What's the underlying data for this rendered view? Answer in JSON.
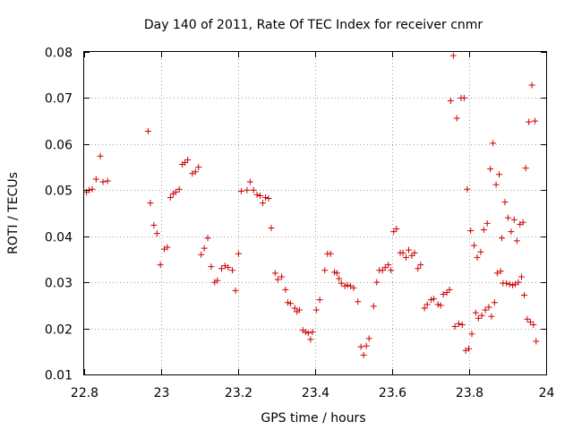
{
  "chart_data": {
    "type": "scatter",
    "title": "Day 140 of 2011, Rate Of TEC Index for receiver cnmr",
    "xlabel": "GPS time / hours",
    "ylabel": "ROTI / TECUs",
    "xlim": [
      22.8,
      24.0
    ],
    "ylim": [
      0.01,
      0.08
    ],
    "x_ticks": [
      "22.8",
      "23",
      "23.2",
      "23.4",
      "23.6",
      "23.8",
      "24"
    ],
    "y_ticks": [
      "0.01",
      "0.02",
      "0.03",
      "0.04",
      "0.05",
      "0.06",
      "0.07",
      "0.08"
    ],
    "grid": true,
    "marker": "+",
    "color": "#cc0000",
    "series": [
      {
        "points": [
          [
            22.806,
            0.0496
          ],
          [
            22.813,
            0.05
          ],
          [
            22.821,
            0.0502
          ],
          [
            22.831,
            0.0524
          ],
          [
            22.842,
            0.0574
          ],
          [
            22.849,
            0.0518
          ],
          [
            22.861,
            0.052
          ],
          [
            22.966,
            0.0628
          ],
          [
            22.972,
            0.0472
          ],
          [
            22.981,
            0.0424
          ],
          [
            22.989,
            0.0406
          ],
          [
            22.998,
            0.0338
          ],
          [
            23.008,
            0.0372
          ],
          [
            23.016,
            0.0376
          ],
          [
            23.024,
            0.0484
          ],
          [
            23.031,
            0.0492
          ],
          [
            23.038,
            0.0496
          ],
          [
            23.047,
            0.0502
          ],
          [
            23.055,
            0.0556
          ],
          [
            23.062,
            0.056
          ],
          [
            23.069,
            0.0566
          ],
          [
            23.081,
            0.0536
          ],
          [
            23.089,
            0.054
          ],
          [
            23.097,
            0.055
          ],
          [
            23.104,
            0.036
          ],
          [
            23.112,
            0.0374
          ],
          [
            23.121,
            0.0396
          ],
          [
            23.13,
            0.0334
          ],
          [
            23.139,
            0.03
          ],
          [
            23.146,
            0.0304
          ],
          [
            23.157,
            0.033
          ],
          [
            23.166,
            0.0336
          ],
          [
            23.174,
            0.0332
          ],
          [
            23.185,
            0.0326
          ],
          [
            23.193,
            0.0282
          ],
          [
            23.201,
            0.0362
          ],
          [
            23.208,
            0.0498
          ],
          [
            23.223,
            0.05
          ],
          [
            23.231,
            0.0518
          ],
          [
            23.24,
            0.05
          ],
          [
            23.249,
            0.049
          ],
          [
            23.257,
            0.0488
          ],
          [
            23.264,
            0.0472
          ],
          [
            23.271,
            0.0484
          ],
          [
            23.279,
            0.0482
          ],
          [
            23.286,
            0.0418
          ],
          [
            23.296,
            0.032
          ],
          [
            23.303,
            0.0306
          ],
          [
            23.313,
            0.0312
          ],
          [
            23.323,
            0.0284
          ],
          [
            23.329,
            0.0256
          ],
          [
            23.336,
            0.0254
          ],
          [
            23.347,
            0.0244
          ],
          [
            23.353,
            0.0236
          ],
          [
            23.359,
            0.024
          ],
          [
            23.368,
            0.0196
          ],
          [
            23.375,
            0.0192
          ],
          [
            23.382,
            0.019
          ],
          [
            23.388,
            0.0176
          ],
          [
            23.393,
            0.0192
          ],
          [
            23.403,
            0.024
          ],
          [
            23.412,
            0.0262
          ],
          [
            23.425,
            0.0326
          ],
          [
            23.432,
            0.0362
          ],
          [
            23.44,
            0.0362
          ],
          [
            23.45,
            0.0322
          ],
          [
            23.457,
            0.032
          ],
          [
            23.462,
            0.0308
          ],
          [
            23.468,
            0.0298
          ],
          [
            23.477,
            0.0292
          ],
          [
            23.484,
            0.0294
          ],
          [
            23.492,
            0.0292
          ],
          [
            23.5,
            0.0288
          ],
          [
            23.511,
            0.0258
          ],
          [
            23.519,
            0.016
          ],
          [
            23.526,
            0.0142
          ],
          [
            23.533,
            0.0162
          ],
          [
            23.54,
            0.0178
          ],
          [
            23.552,
            0.0248
          ],
          [
            23.56,
            0.03
          ],
          [
            23.567,
            0.0326
          ],
          [
            23.575,
            0.0326
          ],
          [
            23.582,
            0.0332
          ],
          [
            23.59,
            0.0338
          ],
          [
            23.597,
            0.0326
          ],
          [
            23.604,
            0.041
          ],
          [
            23.611,
            0.0416
          ],
          [
            23.621,
            0.0364
          ],
          [
            23.628,
            0.0364
          ],
          [
            23.636,
            0.0354
          ],
          [
            23.643,
            0.037
          ],
          [
            23.651,
            0.0358
          ],
          [
            23.658,
            0.0364
          ],
          [
            23.667,
            0.033
          ],
          [
            23.674,
            0.0338
          ],
          [
            23.684,
            0.0244
          ],
          [
            23.691,
            0.0252
          ],
          [
            23.701,
            0.0262
          ],
          [
            23.708,
            0.0264
          ],
          [
            23.719,
            0.0252
          ],
          [
            23.726,
            0.025
          ],
          [
            23.733,
            0.0274
          ],
          [
            23.742,
            0.0278
          ],
          [
            23.749,
            0.0284
          ],
          [
            23.752,
            0.0694
          ],
          [
            23.759,
            0.0792
          ],
          [
            23.763,
            0.0204
          ],
          [
            23.768,
            0.0656
          ],
          [
            23.773,
            0.021
          ],
          [
            23.779,
            0.07
          ],
          [
            23.782,
            0.0208
          ],
          [
            23.787,
            0.07
          ],
          [
            23.791,
            0.0152
          ],
          [
            23.795,
            0.0502
          ],
          [
            23.799,
            0.0156
          ],
          [
            23.804,
            0.0412
          ],
          [
            23.807,
            0.0188
          ],
          [
            23.813,
            0.038
          ],
          [
            23.817,
            0.0234
          ],
          [
            23.821,
            0.0354
          ],
          [
            23.824,
            0.0222
          ],
          [
            23.83,
            0.0366
          ],
          [
            23.833,
            0.0228
          ],
          [
            23.838,
            0.0414
          ],
          [
            23.842,
            0.024
          ],
          [
            23.847,
            0.0428
          ],
          [
            23.851,
            0.0246
          ],
          [
            23.855,
            0.0546
          ],
          [
            23.858,
            0.0226
          ],
          [
            23.862,
            0.0602
          ],
          [
            23.866,
            0.0256
          ],
          [
            23.87,
            0.0512
          ],
          [
            23.873,
            0.032
          ],
          [
            23.878,
            0.0534
          ],
          [
            23.882,
            0.0324
          ],
          [
            23.885,
            0.0396
          ],
          [
            23.888,
            0.0298
          ],
          [
            23.893,
            0.0474
          ],
          [
            23.897,
            0.0298
          ],
          [
            23.901,
            0.044
          ],
          [
            23.905,
            0.0296
          ],
          [
            23.909,
            0.041
          ],
          [
            23.913,
            0.0294
          ],
          [
            23.917,
            0.0436
          ],
          [
            23.92,
            0.0296
          ],
          [
            23.924,
            0.039
          ],
          [
            23.928,
            0.03
          ],
          [
            23.932,
            0.0426
          ],
          [
            23.936,
            0.0312
          ],
          [
            23.94,
            0.043
          ],
          [
            23.943,
            0.0272
          ],
          [
            23.947,
            0.0548
          ],
          [
            23.951,
            0.022
          ],
          [
            23.955,
            0.0648
          ],
          [
            23.959,
            0.0214
          ],
          [
            23.963,
            0.0728
          ],
          [
            23.967,
            0.0208
          ],
          [
            23.971,
            0.065
          ],
          [
            23.974,
            0.0172
          ]
        ]
      }
    ]
  }
}
